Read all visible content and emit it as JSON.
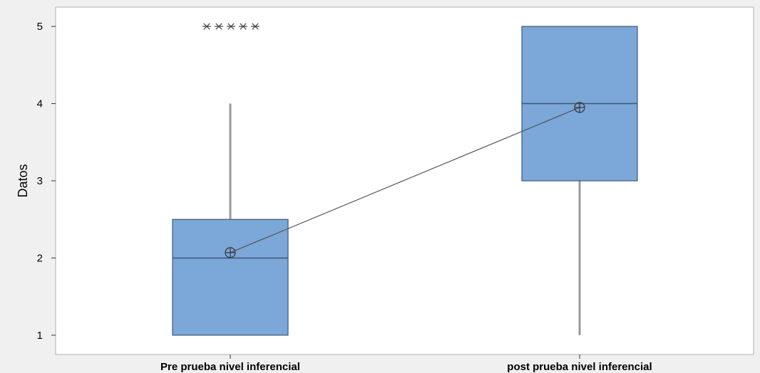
{
  "chart_data": {
    "type": "boxplot",
    "ylabel": "Datos",
    "ylim": [
      0.75,
      5.25
    ],
    "yticks": [
      1,
      2,
      3,
      4,
      5
    ],
    "categories": [
      "Pre prueba nivel inferencial",
      "post prueba nivel inferencial"
    ],
    "boxes": [
      {
        "category": "Pre prueba nivel inferencial",
        "min": 1,
        "q1": 1,
        "median": 2,
        "q3": 2.5,
        "whisker_high": 4,
        "mean": 2.07,
        "outliers": [
          5,
          5,
          5,
          5,
          5
        ]
      },
      {
        "category": "post prueba nivel inferencial",
        "min": 1,
        "q1": 3,
        "median": 4,
        "q3": 5,
        "whisker_high": 5,
        "mean": 3.95,
        "outliers": []
      }
    ],
    "mean_connect_line": true,
    "box_color": "#7ba7d9",
    "box_stroke": "#3f5973",
    "line_color": "#555555",
    "background_color": "#f0f0f0",
    "plot_area_color": "#ffffff"
  }
}
